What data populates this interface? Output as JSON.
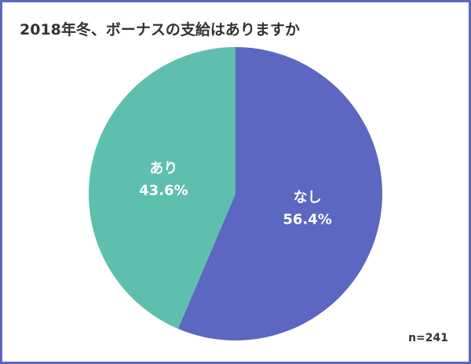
{
  "chart_data": {
    "type": "pie",
    "title": "2018年冬、ボーナスの支給はありますか",
    "slices": [
      {
        "label": "なし",
        "value": 56.4,
        "display": "56.4%",
        "color": "#5b67c0"
      },
      {
        "label": "あり",
        "value": 43.6,
        "display": "43.6%",
        "color": "#5fbfae"
      }
    ],
    "start_angle_deg": 0,
    "direction": "clockwise",
    "note": "n=241"
  }
}
